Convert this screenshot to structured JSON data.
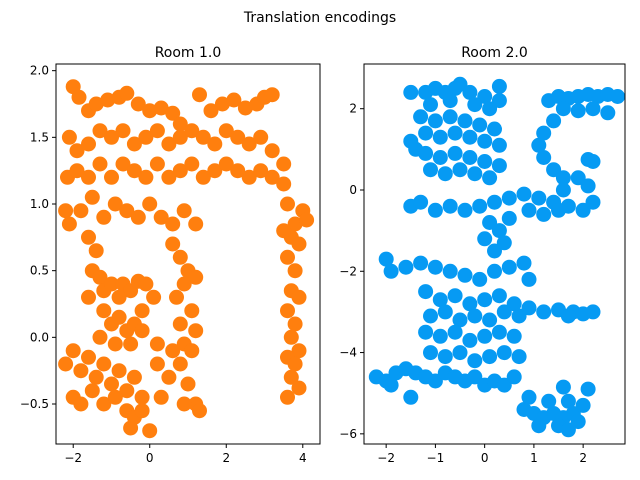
{
  "figure": {
    "title": "Translation encodings"
  },
  "chart_data": [
    {
      "type": "scatter",
      "title": "Room 1.0",
      "color": "#ff7f0e",
      "xlim": [
        -2.45,
        4.45
      ],
      "ylim": [
        -0.8,
        2.05
      ],
      "xticks": [
        -2,
        0,
        2,
        4
      ],
      "xtick_labels": [
        "−2",
        "0",
        "2",
        "4"
      ],
      "yticks": [
        -0.5,
        0.0,
        0.5,
        1.0,
        1.5,
        2.0
      ],
      "ytick_labels": [
        "−0.5",
        "0.0",
        "0.5",
        "1.0",
        "1.5",
        "2.0"
      ],
      "xlabel": "",
      "ylabel": "",
      "grid": false,
      "points": [
        [
          -2.0,
          1.88
        ],
        [
          -1.85,
          1.8
        ],
        [
          -1.6,
          1.7
        ],
        [
          -1.4,
          1.75
        ],
        [
          -1.1,
          1.78
        ],
        [
          -0.8,
          1.8
        ],
        [
          -0.6,
          1.83
        ],
        [
          -0.3,
          1.75
        ],
        [
          0.0,
          1.7
        ],
        [
          0.3,
          1.72
        ],
        [
          0.6,
          1.68
        ],
        [
          0.8,
          1.6
        ],
        [
          1.3,
          1.82
        ],
        [
          1.6,
          1.7
        ],
        [
          1.9,
          1.75
        ],
        [
          2.2,
          1.78
        ],
        [
          2.5,
          1.72
        ],
        [
          2.8,
          1.75
        ],
        [
          3.0,
          1.8
        ],
        [
          3.2,
          1.82
        ],
        [
          -2.1,
          1.5
        ],
        [
          -1.9,
          1.4
        ],
        [
          -1.6,
          1.45
        ],
        [
          -1.3,
          1.55
        ],
        [
          -1.0,
          1.5
        ],
        [
          -0.7,
          1.55
        ],
        [
          -0.4,
          1.45
        ],
        [
          -0.1,
          1.5
        ],
        [
          0.2,
          1.55
        ],
        [
          0.5,
          1.45
        ],
        [
          0.8,
          1.5
        ],
        [
          1.1,
          1.55
        ],
        [
          1.4,
          1.5
        ],
        [
          1.7,
          1.45
        ],
        [
          2.0,
          1.55
        ],
        [
          2.3,
          1.5
        ],
        [
          2.6,
          1.45
        ],
        [
          2.9,
          1.5
        ],
        [
          3.2,
          1.4
        ],
        [
          3.5,
          1.3
        ],
        [
          -2.15,
          1.2
        ],
        [
          -1.9,
          1.25
        ],
        [
          -1.6,
          1.2
        ],
        [
          -1.3,
          1.3
        ],
        [
          -1.0,
          1.2
        ],
        [
          -0.7,
          1.3
        ],
        [
          -0.4,
          1.25
        ],
        [
          -0.1,
          1.2
        ],
        [
          0.2,
          1.3
        ],
        [
          0.5,
          1.2
        ],
        [
          0.8,
          1.25
        ],
        [
          1.1,
          1.3
        ],
        [
          1.4,
          1.2
        ],
        [
          1.7,
          1.25
        ],
        [
          2.0,
          1.3
        ],
        [
          2.3,
          1.25
        ],
        [
          2.6,
          1.2
        ],
        [
          2.9,
          1.25
        ],
        [
          3.2,
          1.2
        ],
        [
          3.5,
          1.15
        ],
        [
          -2.2,
          0.95
        ],
        [
          -2.1,
          0.85
        ],
        [
          -1.8,
          0.95
        ],
        [
          -1.5,
          1.05
        ],
        [
          -1.2,
          0.9
        ],
        [
          -0.9,
          1.0
        ],
        [
          -0.6,
          0.95
        ],
        [
          -0.3,
          0.9
        ],
        [
          0.0,
          1.0
        ],
        [
          0.3,
          0.9
        ],
        [
          0.6,
          0.85
        ],
        [
          0.9,
          0.95
        ],
        [
          1.2,
          0.85
        ],
        [
          3.6,
          1.0
        ],
        [
          3.8,
          0.85
        ],
        [
          4.0,
          0.95
        ],
        [
          4.1,
          0.88
        ],
        [
          3.7,
          0.75
        ],
        [
          3.9,
          0.7
        ],
        [
          3.5,
          0.8
        ],
        [
          -1.6,
          0.75
        ],
        [
          -1.4,
          0.65
        ],
        [
          -1.5,
          0.5
        ],
        [
          -1.3,
          0.45
        ],
        [
          -1.6,
          0.3
        ],
        [
          -1.2,
          0.35
        ],
        [
          -1.0,
          0.4
        ],
        [
          -0.7,
          0.4
        ],
        [
          -0.5,
          0.35
        ],
        [
          -0.3,
          0.42
        ],
        [
          -0.8,
          0.3
        ],
        [
          0.6,
          0.7
        ],
        [
          0.8,
          0.6
        ],
        [
          1.0,
          0.5
        ],
        [
          0.9,
          0.4
        ],
        [
          1.2,
          0.45
        ],
        [
          0.7,
          0.3
        ],
        [
          1.1,
          0.2
        ],
        [
          0.8,
          0.1
        ],
        [
          1.2,
          0.05
        ],
        [
          0.9,
          -0.05
        ],
        [
          3.6,
          0.6
        ],
        [
          3.8,
          0.5
        ],
        [
          3.7,
          0.35
        ],
        [
          3.9,
          0.3
        ],
        [
          3.6,
          0.2
        ],
        [
          3.8,
          0.1
        ],
        [
          3.7,
          0.0
        ],
        [
          3.9,
          -0.1
        ],
        [
          3.6,
          -0.15
        ],
        [
          3.8,
          -0.2
        ],
        [
          3.7,
          -0.3
        ],
        [
          3.6,
          -0.45
        ],
        [
          3.9,
          -0.38
        ],
        [
          -1.2,
          0.2
        ],
        [
          -1.0,
          0.1
        ],
        [
          -0.8,
          0.15
        ],
        [
          -0.6,
          0.05
        ],
        [
          -0.4,
          0.1
        ],
        [
          -0.2,
          0.05
        ],
        [
          -1.3,
          0.0
        ],
        [
          -0.9,
          -0.05
        ],
        [
          -0.5,
          -0.05
        ],
        [
          -2.2,
          -0.2
        ],
        [
          -2.0,
          -0.1
        ],
        [
          -1.8,
          -0.25
        ],
        [
          -1.6,
          -0.15
        ],
        [
          -1.4,
          -0.3
        ],
        [
          -1.2,
          -0.2
        ],
        [
          -1.0,
          -0.35
        ],
        [
          -0.8,
          -0.25
        ],
        [
          -0.6,
          -0.4
        ],
        [
          -0.4,
          -0.3
        ],
        [
          -0.2,
          -0.45
        ],
        [
          -2.0,
          -0.45
        ],
        [
          -1.8,
          -0.5
        ],
        [
          -1.5,
          -0.4
        ],
        [
          -1.2,
          -0.5
        ],
        [
          -0.9,
          -0.45
        ],
        [
          -0.6,
          -0.55
        ],
        [
          -0.4,
          -0.6
        ],
        [
          -0.5,
          -0.68
        ],
        [
          0.0,
          -0.7
        ],
        [
          -0.2,
          -0.55
        ],
        [
          0.2,
          -0.2
        ],
        [
          0.5,
          -0.3
        ],
        [
          0.3,
          -0.45
        ],
        [
          0.8,
          -0.2
        ],
        [
          1.0,
          -0.35
        ],
        [
          1.2,
          -0.5
        ],
        [
          1.3,
          -0.55
        ],
        [
          0.9,
          -0.5
        ],
        [
          1.1,
          -0.1
        ],
        [
          0.6,
          -0.1
        ],
        [
          -0.1,
          0.4
        ],
        [
          0.1,
          0.3
        ],
        [
          -0.2,
          0.2
        ],
        [
          0.2,
          -0.05
        ]
      ]
    },
    {
      "type": "scatter",
      "title": "Room 2.0",
      "color": "#069af3",
      "xlim": [
        -2.45,
        2.85
      ],
      "ylim": [
        -6.25,
        3.1
      ],
      "xticks": [
        -2,
        -1,
        0,
        1,
        2
      ],
      "xtick_labels": [
        "−2",
        "−1",
        "0",
        "1",
        "2"
      ],
      "yticks": [
        -6,
        -4,
        -2,
        0,
        2
      ],
      "ytick_labels": [
        "−6",
        "−4",
        "−2",
        "0",
        "2"
      ],
      "xlabel": "",
      "ylabel": "",
      "grid": false,
      "points": [
        [
          -1.5,
          2.4
        ],
        [
          -1.2,
          2.4
        ],
        [
          -1.0,
          2.5
        ],
        [
          -0.8,
          2.4
        ],
        [
          -0.6,
          2.5
        ],
        [
          -0.5,
          2.6
        ],
        [
          -0.3,
          2.4
        ],
        [
          0.0,
          2.3
        ],
        [
          0.3,
          2.2
        ],
        [
          0.3,
          2.55
        ],
        [
          -1.1,
          2.1
        ],
        [
          -0.7,
          2.2
        ],
        [
          -0.2,
          2.1
        ],
        [
          0.1,
          2.0
        ],
        [
          -1.3,
          1.8
        ],
        [
          -1.0,
          1.7
        ],
        [
          -0.7,
          1.8
        ],
        [
          -0.4,
          1.7
        ],
        [
          -0.1,
          1.6
        ],
        [
          0.2,
          1.5
        ],
        [
          -1.2,
          1.4
        ],
        [
          -0.9,
          1.3
        ],
        [
          -0.6,
          1.4
        ],
        [
          -0.3,
          1.3
        ],
        [
          0.0,
          1.2
        ],
        [
          0.3,
          1.1
        ],
        [
          -1.5,
          1.2
        ],
        [
          -1.4,
          1.0
        ],
        [
          -1.2,
          0.9
        ],
        [
          -0.9,
          0.8
        ],
        [
          -0.6,
          0.9
        ],
        [
          -0.3,
          0.8
        ],
        [
          0.0,
          0.7
        ],
        [
          0.3,
          0.6
        ],
        [
          -1.1,
          0.5
        ],
        [
          -0.8,
          0.4
        ],
        [
          -0.5,
          0.5
        ],
        [
          -0.2,
          0.4
        ],
        [
          0.1,
          0.3
        ],
        [
          -1.5,
          -0.4
        ],
        [
          -1.3,
          -0.3
        ],
        [
          -1.0,
          -0.5
        ],
        [
          -0.7,
          -0.4
        ],
        [
          -0.4,
          -0.5
        ],
        [
          -0.1,
          -0.4
        ],
        [
          0.2,
          -0.3
        ],
        [
          0.5,
          -0.2
        ],
        [
          0.8,
          -0.1
        ],
        [
          1.1,
          -0.2
        ],
        [
          1.4,
          -0.3
        ],
        [
          1.7,
          -0.4
        ],
        [
          2.0,
          -0.5
        ],
        [
          2.2,
          -0.3
        ],
        [
          1.6,
          0.0
        ],
        [
          1.9,
          0.3
        ],
        [
          2.1,
          0.1
        ],
        [
          0.9,
          -0.5
        ],
        [
          1.2,
          -0.6
        ],
        [
          1.5,
          -0.5
        ],
        [
          1.3,
          2.2
        ],
        [
          1.5,
          2.3
        ],
        [
          1.7,
          2.25
        ],
        [
          1.9,
          2.3
        ],
        [
          2.1,
          2.35
        ],
        [
          2.3,
          2.3
        ],
        [
          2.5,
          2.35
        ],
        [
          2.7,
          2.3
        ],
        [
          1.6,
          2.0
        ],
        [
          1.9,
          1.95
        ],
        [
          2.2,
          2.0
        ],
        [
          2.5,
          1.9
        ],
        [
          1.4,
          1.7
        ],
        [
          1.2,
          1.4
        ],
        [
          1.1,
          1.1
        ],
        [
          1.2,
          0.8
        ],
        [
          1.4,
          0.5
        ],
        [
          1.6,
          0.3
        ],
        [
          2.1,
          0.75
        ],
        [
          2.2,
          0.7
        ],
        [
          -2.0,
          -1.7
        ],
        [
          -1.9,
          -2.0
        ],
        [
          -1.6,
          -1.9
        ],
        [
          -1.3,
          -1.8
        ],
        [
          -1.0,
          -1.9
        ],
        [
          -0.7,
          -2.0
        ],
        [
          -0.4,
          -2.1
        ],
        [
          -0.1,
          -2.2
        ],
        [
          0.2,
          -2.0
        ],
        [
          0.5,
          -1.9
        ],
        [
          0.8,
          -1.8
        ],
        [
          0.9,
          -2.2
        ],
        [
          0.2,
          -1.5
        ],
        [
          0.0,
          -1.2
        ],
        [
          0.3,
          -1.0
        ],
        [
          0.1,
          -0.8
        ],
        [
          0.5,
          -0.7
        ],
        [
          0.4,
          -1.3
        ],
        [
          -1.2,
          -2.5
        ],
        [
          -0.9,
          -2.7
        ],
        [
          -0.6,
          -2.6
        ],
        [
          -0.3,
          -2.8
        ],
        [
          0.0,
          -2.7
        ],
        [
          0.3,
          -2.6
        ],
        [
          0.6,
          -2.8
        ],
        [
          -1.1,
          -3.1
        ],
        [
          -0.8,
          -3.0
        ],
        [
          -0.5,
          -3.2
        ],
        [
          -0.2,
          -3.1
        ],
        [
          0.1,
          -3.2
        ],
        [
          0.4,
          -3.0
        ],
        [
          0.7,
          -3.1
        ],
        [
          0.9,
          -2.9
        ],
        [
          1.2,
          -3.0
        ],
        [
          1.5,
          -2.95
        ],
        [
          1.8,
          -3.0
        ],
        [
          2.0,
          -3.05
        ],
        [
          2.2,
          -3.0
        ],
        [
          1.7,
          -3.1
        ],
        [
          -1.2,
          -3.5
        ],
        [
          -0.9,
          -3.6
        ],
        [
          -0.6,
          -3.5
        ],
        [
          -0.3,
          -3.7
        ],
        [
          0.0,
          -3.6
        ],
        [
          0.3,
          -3.5
        ],
        [
          0.6,
          -3.6
        ],
        [
          -1.1,
          -4.0
        ],
        [
          -0.8,
          -4.1
        ],
        [
          -0.5,
          -4.0
        ],
        [
          -0.2,
          -4.2
        ],
        [
          0.1,
          -4.1
        ],
        [
          0.4,
          -4.0
        ],
        [
          0.7,
          -4.1
        ],
        [
          -2.2,
          -4.6
        ],
        [
          -2.0,
          -4.7
        ],
        [
          -1.8,
          -4.5
        ],
        [
          -1.6,
          -4.4
        ],
        [
          -1.4,
          -4.5
        ],
        [
          -1.2,
          -4.6
        ],
        [
          -1.0,
          -4.7
        ],
        [
          -0.8,
          -4.5
        ],
        [
          -0.6,
          -4.6
        ],
        [
          -0.4,
          -4.7
        ],
        [
          -0.2,
          -4.6
        ],
        [
          0.0,
          -4.8
        ],
        [
          0.2,
          -4.7
        ],
        [
          0.4,
          -4.8
        ],
        [
          0.6,
          -4.6
        ],
        [
          -1.5,
          -5.1
        ],
        [
          -1.9,
          -4.8
        ],
        [
          0.8,
          -5.4
        ],
        [
          1.0,
          -5.5
        ],
        [
          1.2,
          -5.6
        ],
        [
          1.4,
          -5.5
        ],
        [
          1.6,
          -5.6
        ],
        [
          1.8,
          -5.5
        ],
        [
          2.0,
          -5.3
        ],
        [
          1.1,
          -5.8
        ],
        [
          1.5,
          -5.8
        ],
        [
          1.7,
          -5.9
        ],
        [
          1.9,
          -5.7
        ],
        [
          2.1,
          -4.9
        ],
        [
          1.6,
          -4.85
        ],
        [
          1.3,
          -5.2
        ],
        [
          0.9,
          -5.1
        ],
        [
          1.7,
          -5.2
        ]
      ]
    }
  ]
}
